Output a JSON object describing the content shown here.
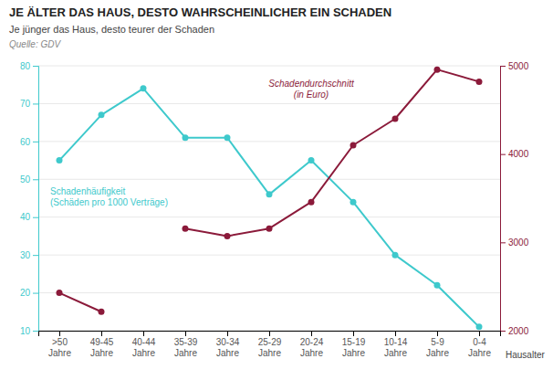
{
  "chart_data": {
    "type": "line",
    "title": "JE ÄLTER DAS HAUS, DESTO WAHRSCHEINLICHER EIN SCHADEN",
    "subtitle": "Je jünger das Haus, desto teurer der Schaden",
    "annotations": [
      "Quelle: GDV"
    ],
    "x_label": "Hausalter",
    "categories": [
      ">50\nJahre",
      "49-45\nJahre",
      "40-44\nJahre",
      "35-39\nJahre",
      "30-34\nJahre",
      "25-29\nJahre",
      "20-24\nJahre",
      "15-19\nJahre",
      "10-14\nJahre",
      "5-9\nJahre",
      "0-4\nJahre"
    ],
    "series": [
      {
        "name": "Schadenhäufigkeit\n(Schäden pro 1000 Verträge)",
        "color": "#3ec9cc",
        "marker": "circle",
        "values": [
          55,
          67,
          74,
          61,
          61,
          46,
          55,
          44,
          30,
          22,
          11
        ]
      },
      {
        "name": "Schadendurchschnitt\n(in Euro)",
        "color": "#8b1a3a",
        "marker": "circle",
        "axis": "y2",
        "values": [
          2428.5714285714284,
          2214.285714285714,
          null,
          3157.1428571428573,
          3071.4285714285716,
          3157.1428571428573,
          3457.1428571428573,
          4100,
          4400,
          4957.142857142857,
          4820
        ]
      }
    ],
    "ylim": [
      10,
      80
    ],
    "yticks": [
      10,
      20,
      30,
      40,
      50,
      60,
      70,
      80
    ],
    "y2lim": [
      2000,
      5000
    ],
    "y2ticks": [
      2000,
      3000,
      4000,
      5000
    ],
    "grid": true
  }
}
